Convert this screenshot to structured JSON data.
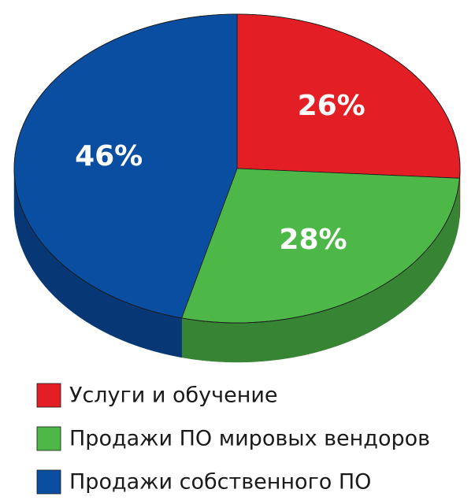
{
  "chart_data": {
    "type": "pie",
    "categories": [
      "Услуги и обучение",
      "Продажи ПО мировых вендоров",
      "Продажи собственного ПО"
    ],
    "values": [
      26,
      28,
      46
    ],
    "value_labels": [
      "26%",
      "28%",
      "46%"
    ],
    "colors": [
      "#e31e24",
      "#4db848",
      "#0a4ea2"
    ]
  }
}
